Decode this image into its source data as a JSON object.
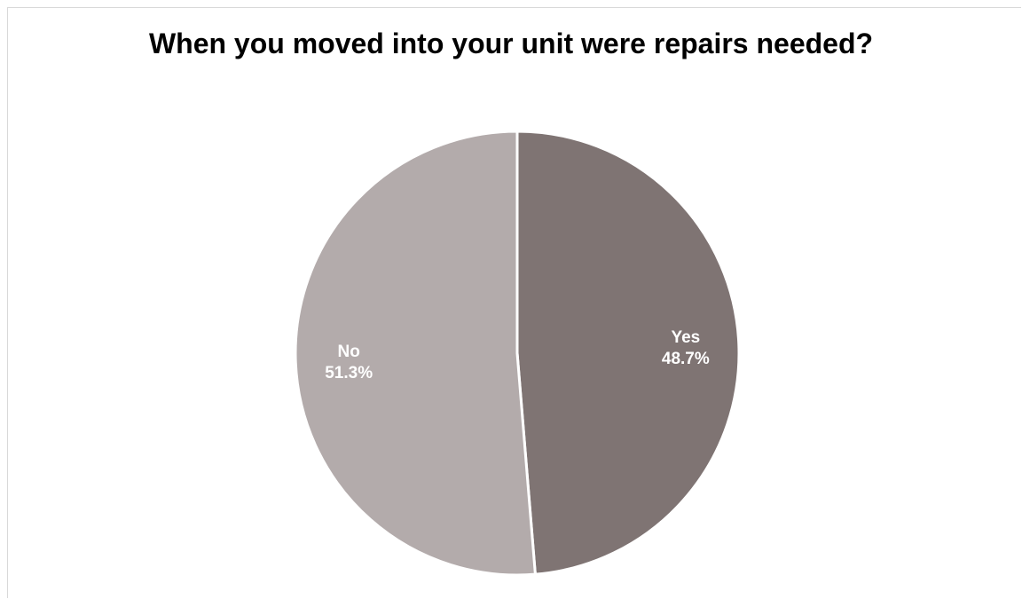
{
  "chart_data": {
    "type": "pie",
    "title": "When you moved into your unit were repairs needed?",
    "slices": [
      {
        "label": "Yes",
        "value": 48.7,
        "value_label": "48.7%",
        "color": "#7f7473"
      },
      {
        "label": "No",
        "value": 51.3,
        "value_label": "51.3%",
        "color": "#b3abab"
      }
    ],
    "start_angle_deg": 0,
    "direction": "clockwise",
    "legend": "none",
    "separator_color": "#ffffff"
  }
}
